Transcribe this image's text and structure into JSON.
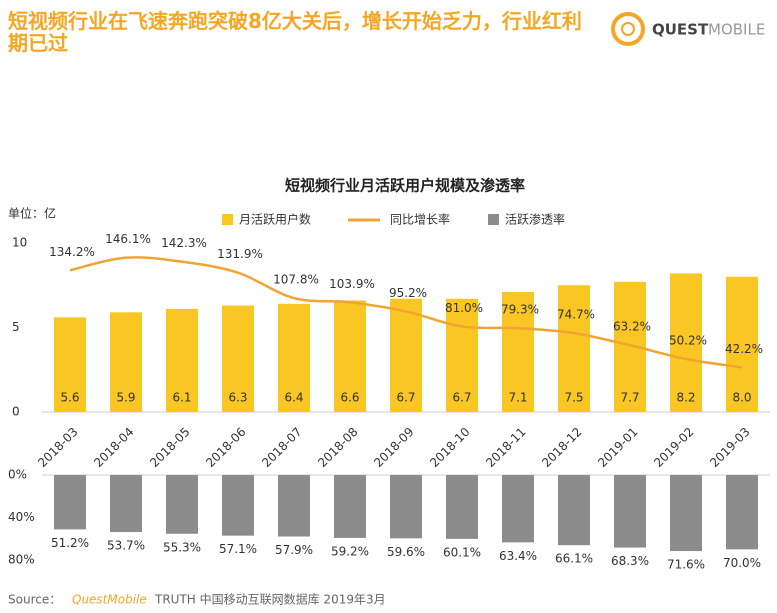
{
  "header": {
    "title": "短视频行业在飞速奔跑突破8亿大关后，增长开始乏力，行业红利期已过",
    "logo": {
      "bold": "QUEST",
      "light": "MOBILE"
    }
  },
  "chart_data": [
    {
      "type": "bar",
      "title": "短视频行业月活跃用户规模及渗透率",
      "unit": "单位：亿",
      "categories": [
        "2018-03",
        "2018-04",
        "2018-05",
        "2018-06",
        "2018-07",
        "2018-08",
        "2018-09",
        "2018-10",
        "2018-11",
        "2018-12",
        "2019-01",
        "2019-02",
        "2019-03"
      ],
      "series": [
        {
          "name": "月活跃用户数",
          "color": "#f9c623",
          "values": [
            5.6,
            5.9,
            6.1,
            6.3,
            6.4,
            6.6,
            6.7,
            6.7,
            7.1,
            7.5,
            7.7,
            8.2,
            8.0
          ],
          "value_labels": [
            "5.6",
            "5.9",
            "6.1",
            "6.3",
            "6.4",
            "6.6",
            "6.7",
            "6.7",
            "7.1",
            "7.5",
            "7.7",
            "8.2",
            "8.0"
          ]
        },
        {
          "name": "同比增长率",
          "type": "line",
          "axis": "y2",
          "color": "#f0a431",
          "values": [
            134.2,
            146.1,
            142.3,
            131.9,
            107.8,
            103.9,
            95.2,
            81.0,
            79.3,
            74.7,
            63.2,
            50.2,
            42.2
          ],
          "value_labels": [
            "134.2%",
            "146.1%",
            "142.3%",
            "131.9%",
            "107.8%",
            "103.9%",
            "95.2%",
            "81.0%",
            "79.3%",
            "74.7%",
            "63.2%",
            "50.2%",
            "42.2%"
          ]
        }
      ],
      "ylim": [
        0,
        10
      ],
      "yticks": [
        0,
        5,
        10
      ],
      "y2lim": [
        0,
        160
      ]
    },
    {
      "type": "bar",
      "inverted": true,
      "series": [
        {
          "name": "活跃渗透率",
          "color": "#8c8c8c",
          "values": [
            51.2,
            53.7,
            55.3,
            57.1,
            57.9,
            59.2,
            59.6,
            60.1,
            63.4,
            66.1,
            68.3,
            71.6,
            70.0
          ],
          "value_labels": [
            "51.2%",
            "53.7%",
            "55.3%",
            "57.1%",
            "57.9%",
            "59.2%",
            "59.6%",
            "60.1%",
            "63.4%",
            "66.1%",
            "68.3%",
            "71.6%",
            "70.0%"
          ]
        }
      ],
      "ylim": [
        0,
        80
      ],
      "yticks": [
        {
          "value": 0,
          "label": "0%"
        },
        {
          "value": 40,
          "label": "40%"
        },
        {
          "value": 80,
          "label": "80%"
        }
      ]
    }
  ],
  "source": {
    "label": "Source：",
    "brand": "QuestMobile",
    "text": "TRUTH 中国移动互联网数据库 2019年3月"
  }
}
